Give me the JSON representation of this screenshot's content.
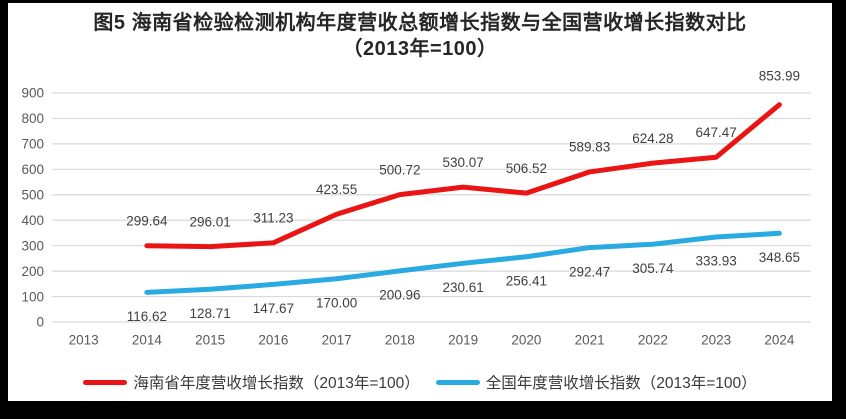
{
  "chart": {
    "title_line1": "图5  海南省检验检测机构年度营收总额增长指数与全国营收增长指数对比",
    "title_line2": "（2013年=100）",
    "legend": [
      "海南省年度营收增长指数（2013年=100）",
      "全国年度营收增长指数（2013年=100）"
    ]
  },
  "chart_data": {
    "type": "line",
    "title": "图5 海南省检验检测机构年度营收总额增长指数与全国营收增长指数对比（2013年=100）",
    "xlabel": "",
    "ylabel": "",
    "categories": [
      2013,
      2014,
      2015,
      2016,
      2017,
      2018,
      2019,
      2020,
      2021,
      2022,
      2023,
      2024
    ],
    "ylim": [
      0,
      900
    ],
    "ytick_interval": 100,
    "grid": true,
    "legend_position": "bottom",
    "series": [
      {
        "name": "海南省年度营收增长指数（2013年=100）",
        "color": "#eb1414",
        "x": [
          2014,
          2015,
          2016,
          2017,
          2018,
          2019,
          2020,
          2021,
          2022,
          2023,
          2024
        ],
        "values": [
          299.64,
          296.01,
          311.23,
          423.55,
          500.72,
          530.07,
          506.52,
          589.83,
          624.28,
          647.47,
          853.99
        ]
      },
      {
        "name": "全国年度营收增长指数（2013年=100）",
        "color": "#29abe2",
        "x": [
          2014,
          2015,
          2016,
          2017,
          2018,
          2019,
          2020,
          2021,
          2022,
          2023,
          2024
        ],
        "values": [
          116.62,
          128.71,
          147.67,
          170.0,
          200.96,
          230.61,
          256.41,
          292.47,
          305.74,
          333.93,
          348.65
        ]
      }
    ]
  }
}
